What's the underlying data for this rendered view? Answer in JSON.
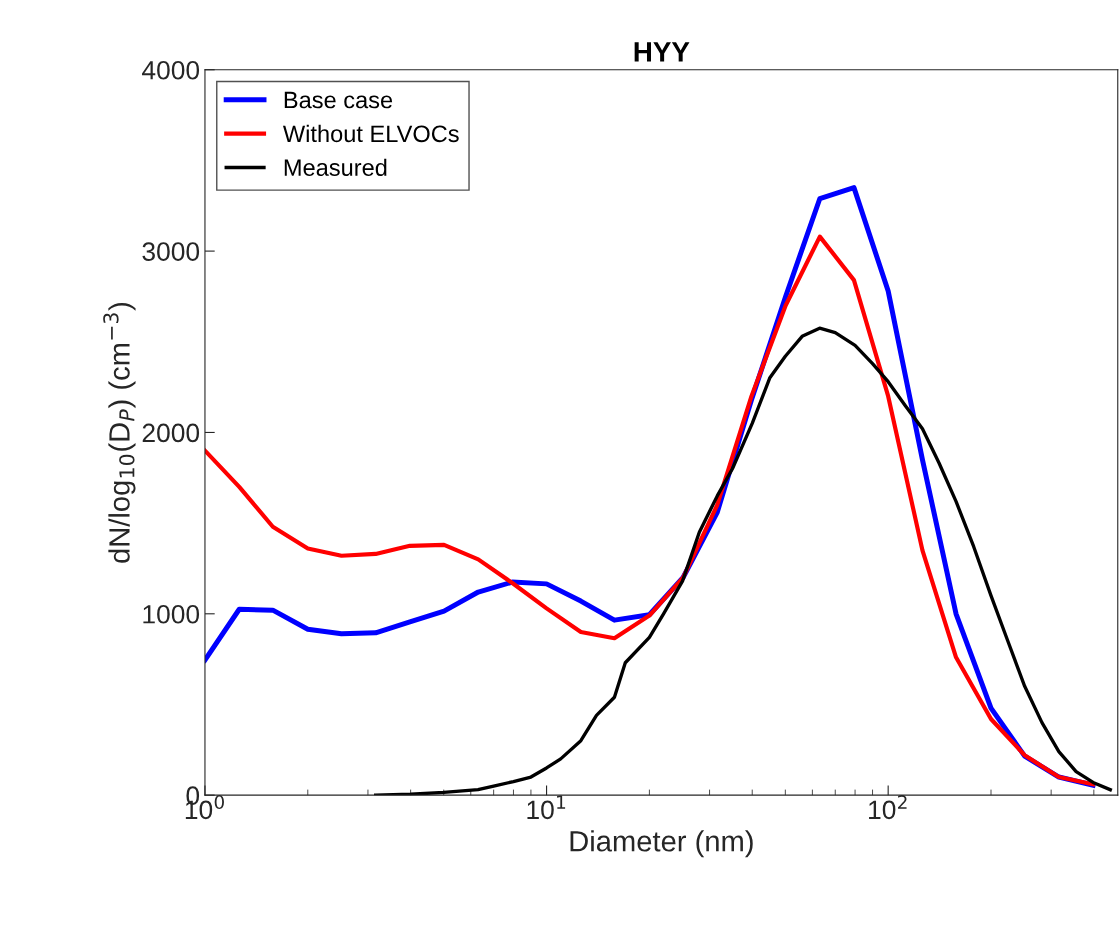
{
  "chart_data": {
    "type": "line",
    "title": "HYY",
    "xlabel": "Diameter (nm)",
    "ylabel": "dN/log$_{10}$(D$_{P}$) (cm$^{−3}$)",
    "log": "x",
    "xlim": [
      1,
      470
    ],
    "xticks": [
      {
        "value": 1,
        "label": "10$^{0}$"
      },
      {
        "value": 10,
        "label": "10$^{1}$"
      },
      {
        "value": 100,
        "label": "10$^{2}$"
      }
    ],
    "ylim": [
      0,
      4000
    ],
    "yticks": [
      0,
      1000,
      2000,
      3000,
      4000
    ],
    "grid": false,
    "legend": "top left",
    "line_style": "solid",
    "marker": "none",
    "series": [
      {
        "name": "Base case",
        "color": "#0000ff",
        "x": [
          1,
          1.26,
          1.58,
          2,
          2.51,
          3.16,
          3.98,
          5.01,
          6.31,
          7.94,
          10,
          12.6,
          15.8,
          20,
          25.1,
          31.6,
          39.8,
          50.1,
          63.1,
          79.4,
          100,
          126,
          158,
          200,
          251,
          316,
          398
        ],
        "values": [
          745,
          1025,
          1020,
          915,
          890,
          895,
          955,
          1015,
          1120,
          1175,
          1165,
          1070,
          965,
          995,
          1200,
          1560,
          2180,
          2750,
          3290,
          3350,
          2780,
          1850,
          1000,
          480,
          215,
          100,
          55
        ]
      },
      {
        "name": "Without ELVOCs",
        "color": "#ff0000",
        "x": [
          1,
          1.26,
          1.58,
          2,
          2.51,
          3.16,
          3.98,
          5.01,
          6.31,
          7.94,
          10,
          12.6,
          15.8,
          20,
          25.1,
          31.6,
          39.8,
          50.1,
          63.1,
          79.4,
          100,
          126,
          158,
          200,
          251,
          316,
          398
        ],
        "values": [
          1900,
          1700,
          1480,
          1360,
          1320,
          1330,
          1375,
          1380,
          1300,
          1170,
          1030,
          900,
          865,
          990,
          1200,
          1600,
          2200,
          2700,
          3080,
          2840,
          2200,
          1350,
          760,
          420,
          220,
          100,
          60
        ]
      },
      {
        "name": "Measured",
        "color": "#000000",
        "x": [
          3.16,
          4,
          5,
          6.3,
          7,
          8,
          9,
          10,
          11,
          12.6,
          14,
          15.8,
          17,
          20,
          22,
          25,
          28,
          31.6,
          35,
          40,
          45,
          50,
          56,
          63,
          70,
          80,
          90,
          100,
          112,
          126,
          141,
          158,
          178,
          200,
          224,
          251,
          282,
          316,
          355,
          398,
          447
        ],
        "values": [
          0,
          5,
          15,
          30,
          50,
          75,
          100,
          150,
          200,
          300,
          440,
          540,
          730,
          870,
          1000,
          1180,
          1450,
          1650,
          1800,
          2050,
          2300,
          2420,
          2530,
          2575,
          2550,
          2480,
          2380,
          2280,
          2150,
          2020,
          1830,
          1620,
          1370,
          1100,
          850,
          600,
          400,
          240,
          130,
          70,
          30
        ]
      }
    ]
  }
}
